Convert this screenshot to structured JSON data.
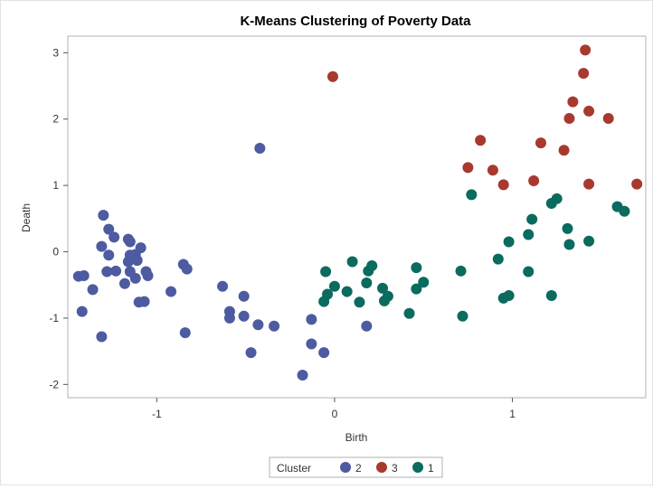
{
  "chart_data": {
    "type": "scatter",
    "title": "K-Means Clustering of Poverty Data",
    "xlabel": "Birth",
    "ylabel": "Death",
    "xlim": [
      -1.5,
      1.75
    ],
    "ylim": [
      -2.2,
      3.25
    ],
    "xticks": [
      -1,
      0,
      1
    ],
    "yticks": [
      -2,
      -1,
      0,
      1,
      2,
      3
    ],
    "grid": false,
    "legend": {
      "title": "Cluster",
      "placement": "bottom-center"
    },
    "series": [
      {
        "name": "2",
        "color": "#4d5ba1",
        "points": [
          [
            -1.44,
            -0.37
          ],
          [
            -1.41,
            -0.36
          ],
          [
            -1.42,
            -0.9
          ],
          [
            -1.36,
            -0.57
          ],
          [
            -1.3,
            0.55
          ],
          [
            -1.31,
            0.08
          ],
          [
            -1.27,
            0.34
          ],
          [
            -1.27,
            -0.05
          ],
          [
            -1.28,
            -0.3
          ],
          [
            -1.24,
            0.22
          ],
          [
            -1.23,
            -0.29
          ],
          [
            -1.16,
            0.19
          ],
          [
            -1.16,
            -0.15
          ],
          [
            -1.15,
            0.15
          ],
          [
            -1.15,
            -0.05
          ],
          [
            -1.15,
            -0.3
          ],
          [
            -1.18,
            -0.48
          ],
          [
            -1.12,
            -0.4
          ],
          [
            -1.12,
            -0.04
          ],
          [
            -1.11,
            -0.13
          ],
          [
            -1.09,
            0.06
          ],
          [
            -1.1,
            -0.76
          ],
          [
            -1.07,
            -0.75
          ],
          [
            -1.06,
            -0.3
          ],
          [
            -1.05,
            -0.36
          ],
          [
            -0.92,
            -0.6
          ],
          [
            -0.85,
            -0.19
          ],
          [
            -0.83,
            -0.26
          ],
          [
            -0.84,
            -1.22
          ],
          [
            -0.63,
            -0.52
          ],
          [
            -0.59,
            -0.9
          ],
          [
            -0.59,
            -1.0
          ],
          [
            -0.51,
            -0.67
          ],
          [
            -0.51,
            -0.97
          ],
          [
            -0.47,
            -1.52
          ],
          [
            -0.43,
            -1.1
          ],
          [
            -0.34,
            -1.12
          ],
          [
            -0.42,
            1.56
          ],
          [
            -0.13,
            -1.02
          ],
          [
            -0.13,
            -1.39
          ],
          [
            -0.18,
            -1.86
          ],
          [
            -0.06,
            -1.52
          ],
          [
            -1.31,
            -1.28
          ],
          [
            0.18,
            -1.12
          ]
        ]
      },
      {
        "name": "3",
        "color": "#a8392e",
        "points": [
          [
            -0.01,
            2.64
          ],
          [
            0.75,
            1.27
          ],
          [
            0.82,
            1.68
          ],
          [
            0.89,
            1.23
          ],
          [
            0.95,
            1.01
          ],
          [
            1.12,
            1.07
          ],
          [
            1.16,
            1.64
          ],
          [
            1.29,
            1.53
          ],
          [
            1.32,
            2.01
          ],
          [
            1.34,
            2.26
          ],
          [
            1.4,
            2.69
          ],
          [
            1.41,
            3.04
          ],
          [
            1.43,
            2.12
          ],
          [
            1.43,
            1.02
          ],
          [
            1.54,
            2.01
          ],
          [
            1.7,
            1.02
          ]
        ]
      },
      {
        "name": "1",
        "color": "#0a6b5e",
        "points": [
          [
            -0.05,
            -0.3
          ],
          [
            -0.04,
            -0.64
          ],
          [
            -0.06,
            -0.75
          ],
          [
            0.0,
            -0.52
          ],
          [
            0.07,
            -0.6
          ],
          [
            0.1,
            -0.15
          ],
          [
            0.14,
            -0.76
          ],
          [
            0.18,
            -0.47
          ],
          [
            0.19,
            -0.29
          ],
          [
            0.21,
            -0.21
          ],
          [
            0.27,
            -0.55
          ],
          [
            0.28,
            -0.74
          ],
          [
            0.3,
            -0.67
          ],
          [
            0.42,
            -0.93
          ],
          [
            0.46,
            -0.24
          ],
          [
            0.46,
            -0.56
          ],
          [
            0.5,
            -0.46
          ],
          [
            0.71,
            -0.29
          ],
          [
            0.72,
            -0.97
          ],
          [
            0.77,
            0.86
          ],
          [
            0.92,
            -0.11
          ],
          [
            0.95,
            -0.7
          ],
          [
            0.98,
            -0.66
          ],
          [
            0.98,
            0.15
          ],
          [
            1.09,
            -0.3
          ],
          [
            1.09,
            0.26
          ],
          [
            1.11,
            0.49
          ],
          [
            1.22,
            0.73
          ],
          [
            1.22,
            -0.66
          ],
          [
            1.25,
            0.8
          ],
          [
            1.31,
            0.35
          ],
          [
            1.32,
            0.11
          ],
          [
            1.43,
            0.16
          ],
          [
            1.59,
            0.68
          ],
          [
            1.63,
            0.61
          ]
        ]
      }
    ]
  }
}
